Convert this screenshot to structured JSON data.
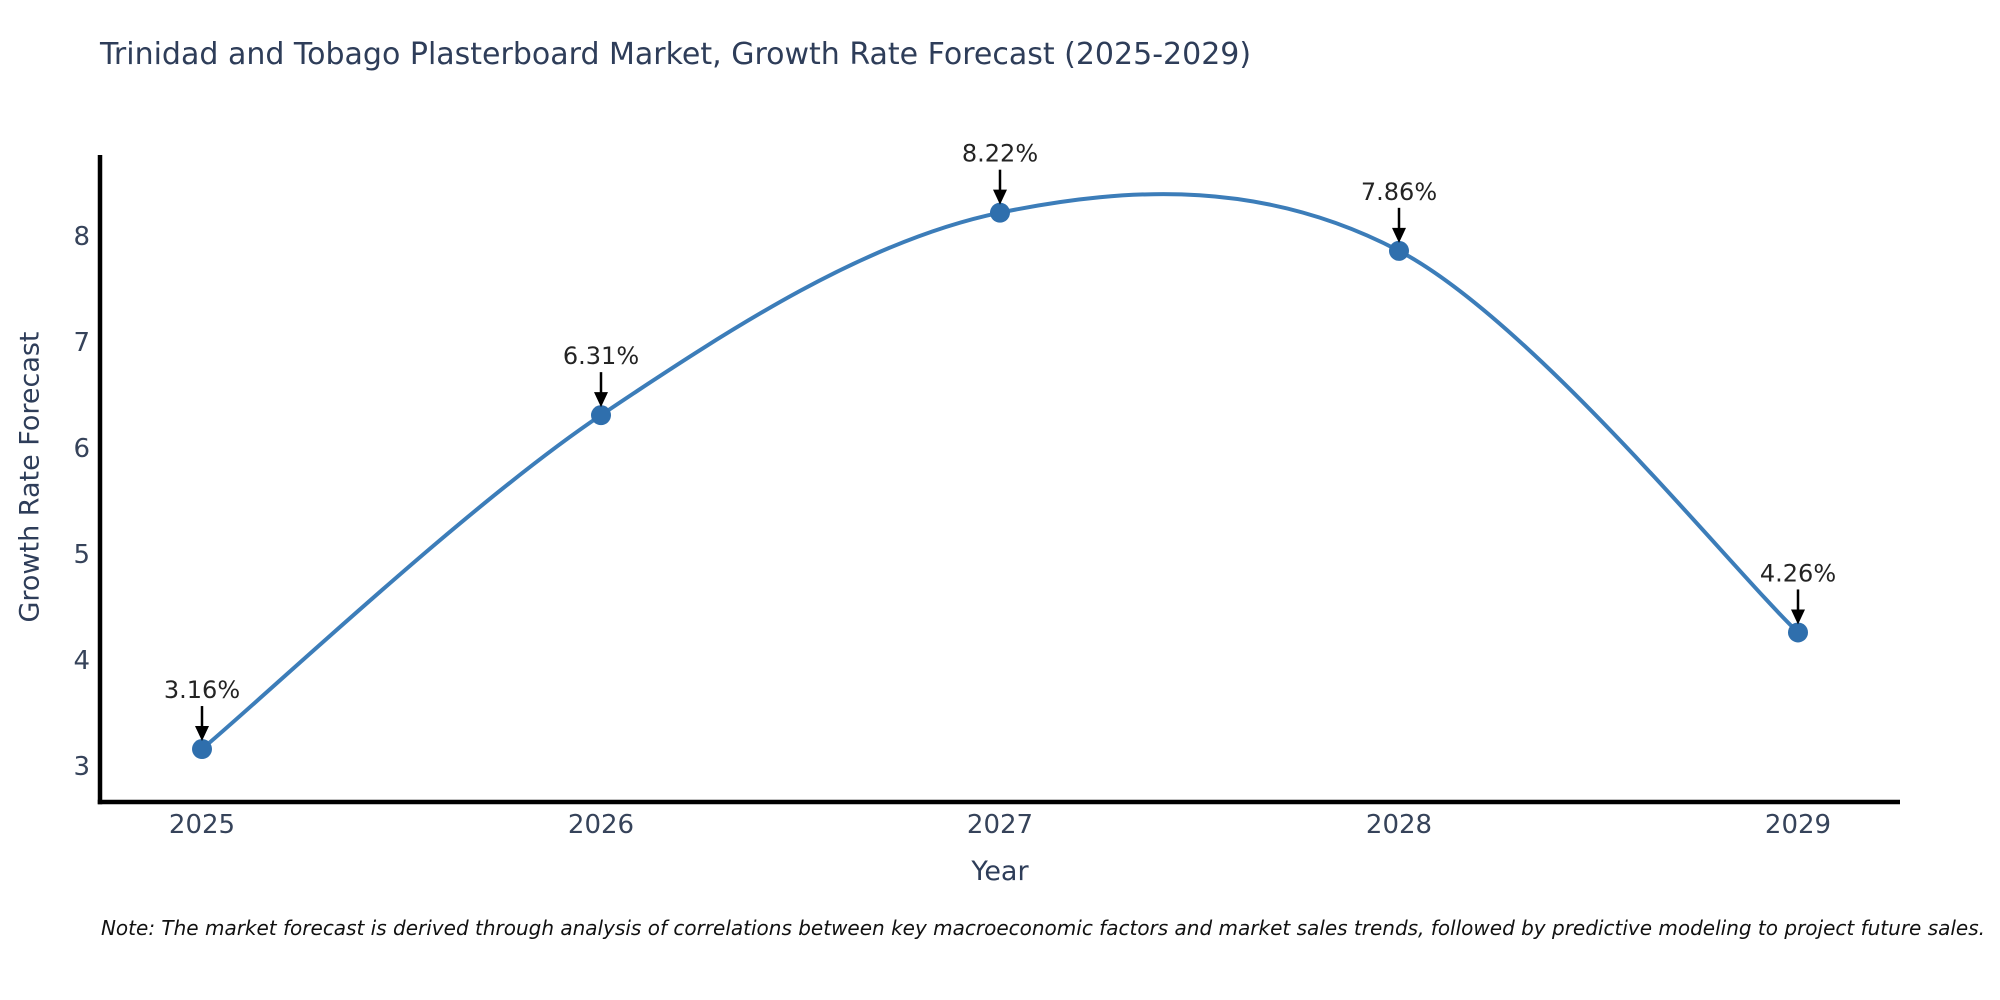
{
  "chart_data": {
    "type": "line",
    "title": "Trinidad and Tobago Plasterboard Market, Growth Rate Forecast (2025-2029)",
    "xlabel": "Year",
    "ylabel": "Growth Rate Forecast",
    "x": [
      2025,
      2026,
      2027,
      2028,
      2029
    ],
    "series": [
      {
        "name": "Growth Rate Forecast",
        "values": [
          3.16,
          6.31,
          8.22,
          7.86,
          4.26
        ]
      }
    ],
    "annotations": [
      {
        "x": 2025,
        "y": 3.16,
        "text": "3.16%",
        "arrow": "down"
      },
      {
        "x": 2026,
        "y": 6.31,
        "text": "6.31%",
        "arrow": "down"
      },
      {
        "x": 2027,
        "y": 8.22,
        "text": "8.22%",
        "arrow": "down"
      },
      {
        "x": 2028,
        "y": 7.86,
        "text": "7.86%",
        "arrow": "down"
      },
      {
        "x": 2029,
        "y": 4.26,
        "text": "4.26%",
        "arrow": "down"
      }
    ],
    "yticks": [
      3,
      4,
      5,
      6,
      7,
      8
    ],
    "xticks": [
      2025,
      2026,
      2027,
      2028,
      2029
    ],
    "xlim": [
      2024.74,
      2029.26
    ],
    "ylim": [
      2.66,
      8.76
    ],
    "grid": false,
    "legend_position": "none",
    "curve": "spline",
    "marker": "circle",
    "note": "Note: The market forecast is derived through analysis of correlations between key macroeconomic factors and market sales trends, followed by predictive modeling to project future sales.",
    "colors": {
      "line": "#3c7db9",
      "marker": "#2f6fad",
      "axis": "#000000",
      "title_text": "#2e3d59",
      "tick_text": "#36435a",
      "annotation_text": "#242424",
      "arrow": "#000000",
      "background": "#ffffff"
    }
  }
}
